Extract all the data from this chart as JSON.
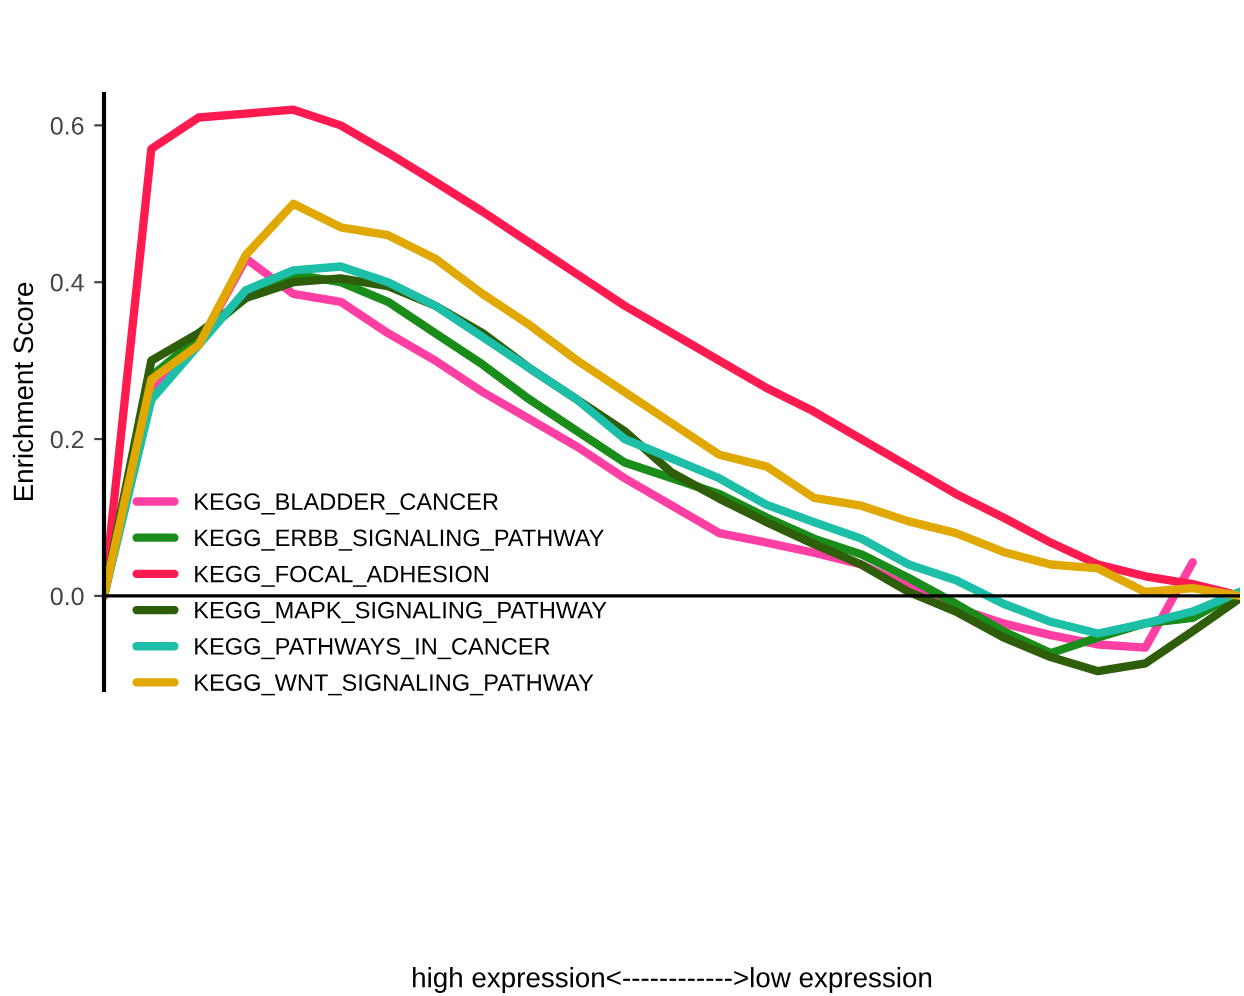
{
  "chart_data": {
    "type": "line",
    "ylabel": "Enrichment Score",
    "annotations": [
      "high expression<------------>low expression"
    ],
    "categories": [
      null,
      null,
      null,
      null,
      null,
      null,
      null,
      null,
      null,
      null,
      null,
      null,
      null,
      null,
      null,
      null,
      null,
      null,
      null,
      null,
      null,
      null,
      null,
      null,
      null
    ],
    "ylim": [
      -0.12,
      0.64
    ],
    "yticks": [
      {
        "value": 0,
        "label": "0.0"
      },
      0.2,
      0.4,
      0.6
    ],
    "tick_labels": "y",
    "grid": false,
    "legend": "bottom left",
    "marker": "none",
    "line_style": "solid",
    "ref_lines": [
      {
        "axis": "y",
        "value": 0,
        "color": "#000000"
      }
    ],
    "series": [
      {
        "name": "KEGG_BLADDER_CANCER",
        "color": "#ff3fa4",
        "values": [
          0,
          0.26,
          0.32,
          0.43,
          0.385,
          0.375,
          0.335,
          0.3,
          0.26,
          0.225,
          0.19,
          0.15,
          0.115,
          0.08,
          0.068,
          0.055,
          0.04,
          0.012,
          -0.015,
          -0.035,
          -0.05,
          -0.062,
          -0.066,
          0.043,
          null
        ]
      },
      {
        "name": "KEGG_ERBB_SIGNALING_PATHWAY",
        "color": "#1a8c1a",
        "values": [
          0,
          0.28,
          0.33,
          0.38,
          0.41,
          0.4,
          0.375,
          0.335,
          0.295,
          0.25,
          0.21,
          0.17,
          0.15,
          0.13,
          0.1,
          0.073,
          0.053,
          0.023,
          -0.01,
          -0.045,
          -0.073,
          -0.053,
          -0.035,
          -0.028,
          0.005
        ]
      },
      {
        "name": "KEGG_FOCAL_ADHESION",
        "color": "#ff1a4f",
        "values": [
          0,
          0.57,
          0.61,
          0.615,
          0.62,
          0.6,
          0.565,
          0.528,
          0.49,
          0.45,
          0.41,
          0.37,
          0.335,
          0.3,
          0.265,
          0.235,
          0.2,
          0.165,
          0.13,
          0.1,
          0.068,
          0.04,
          0.025,
          0.015,
          0
        ]
      },
      {
        "name": "KEGG_MAPK_SIGNALING_PATHWAY",
        "color": "#2e5e0a",
        "values": [
          0,
          0.3,
          0.335,
          0.38,
          0.4,
          0.405,
          0.395,
          0.37,
          0.335,
          0.29,
          0.25,
          0.21,
          0.157,
          0.124,
          0.094,
          0.066,
          0.04,
          0.005,
          -0.02,
          -0.053,
          -0.078,
          -0.096,
          -0.086,
          -0.045,
          -0.003
        ]
      },
      {
        "name": "KEGG_PATHWAYS_IN_CANCER",
        "color": "#1ebfa8",
        "values": [
          0,
          0.25,
          0.32,
          0.39,
          0.415,
          0.42,
          0.4,
          0.37,
          0.33,
          0.29,
          0.25,
          0.2,
          0.175,
          0.15,
          0.116,
          0.094,
          0.073,
          0.04,
          0.02,
          -0.01,
          -0.033,
          -0.048,
          -0.035,
          -0.02,
          0.005
        ]
      },
      {
        "name": "KEGG_WNT_SIGNALING_PATHWAY",
        "color": "#e0a800",
        "values": [
          0,
          0.276,
          0.32,
          0.435,
          0.5,
          0.47,
          0.46,
          0.43,
          0.385,
          0.345,
          0.3,
          0.26,
          0.22,
          0.18,
          0.165,
          0.125,
          0.115,
          0.095,
          0.08,
          0.056,
          0.04,
          0.035,
          0.005,
          0.01,
          0
        ]
      }
    ]
  }
}
